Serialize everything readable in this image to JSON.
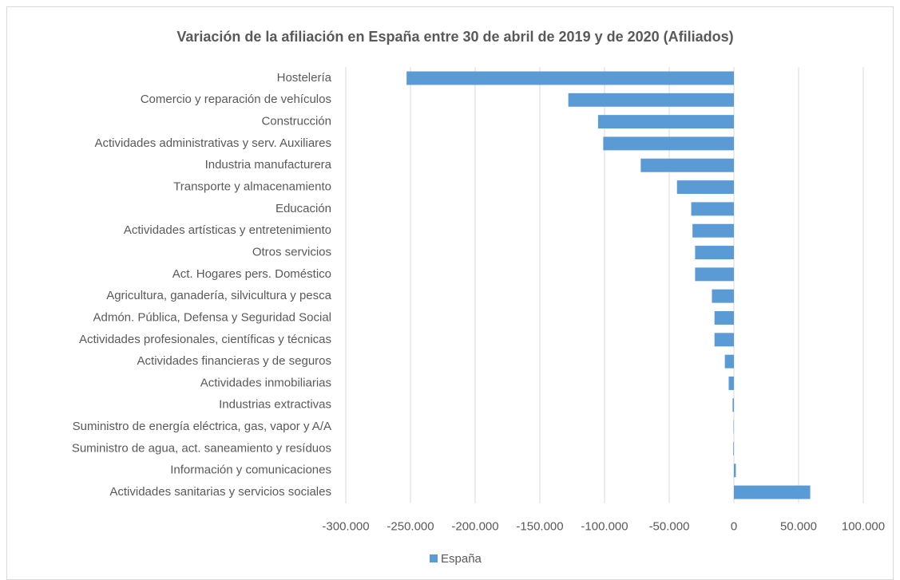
{
  "chart_data": {
    "type": "bar",
    "orientation": "horizontal",
    "title": "Variación de la afiliación en España entre 30 de abril de 2019 y de 2020 (Afiliados)",
    "categories": [
      "Hostelería",
      "Comercio y reparación de vehículos",
      "Construcción",
      "Actividades administrativas y serv. Auxiliares",
      "Industria manufacturera",
      "Transporte y almacenamiento",
      "Educación",
      "Actividades artísticas y entretenimiento",
      "Otros servicios",
      "Act. Hogares pers. Doméstico",
      "Agricultura, ganadería, silvicultura y pesca",
      "Admón. Pública, Defensa y Seguridad Social",
      "Actividades profesionales, científicas y técnicas",
      "Actividades financieras y de seguros",
      "Actividades inmobiliarias",
      "Industrias extractivas",
      "Suministro de energía eléctrica, gas, vapor y A/A",
      "Suministro de agua, act. saneamiento y resíduos",
      "Información y comunicaciones",
      "Actividades sanitarias y servicios sociales"
    ],
    "series": [
      {
        "name": "España",
        "color": "#5b9bd5",
        "values": [
          -253000,
          -128000,
          -105000,
          -101000,
          -72000,
          -44000,
          -33000,
          -32000,
          -30000,
          -30000,
          -17000,
          -15000,
          -15000,
          -7000,
          -4000,
          -1000,
          -300,
          -500,
          1500,
          59000
        ]
      }
    ],
    "xlim": [
      -300000,
      100000
    ],
    "xticks": [
      {
        "value": -300000,
        "label": "-300.000"
      },
      {
        "value": -250000,
        "label": "-250.000"
      },
      {
        "value": -200000,
        "label": "-200.000"
      },
      {
        "value": -150000,
        "label": "-150.000"
      },
      {
        "value": -100000,
        "label": "-100.000"
      },
      {
        "value": -50000,
        "label": "-50.000"
      },
      0,
      {
        "value": 50000,
        "label": "50.000"
      },
      {
        "value": 100000,
        "label": "100.000"
      }
    ],
    "grid": true,
    "legend": "bottom"
  }
}
